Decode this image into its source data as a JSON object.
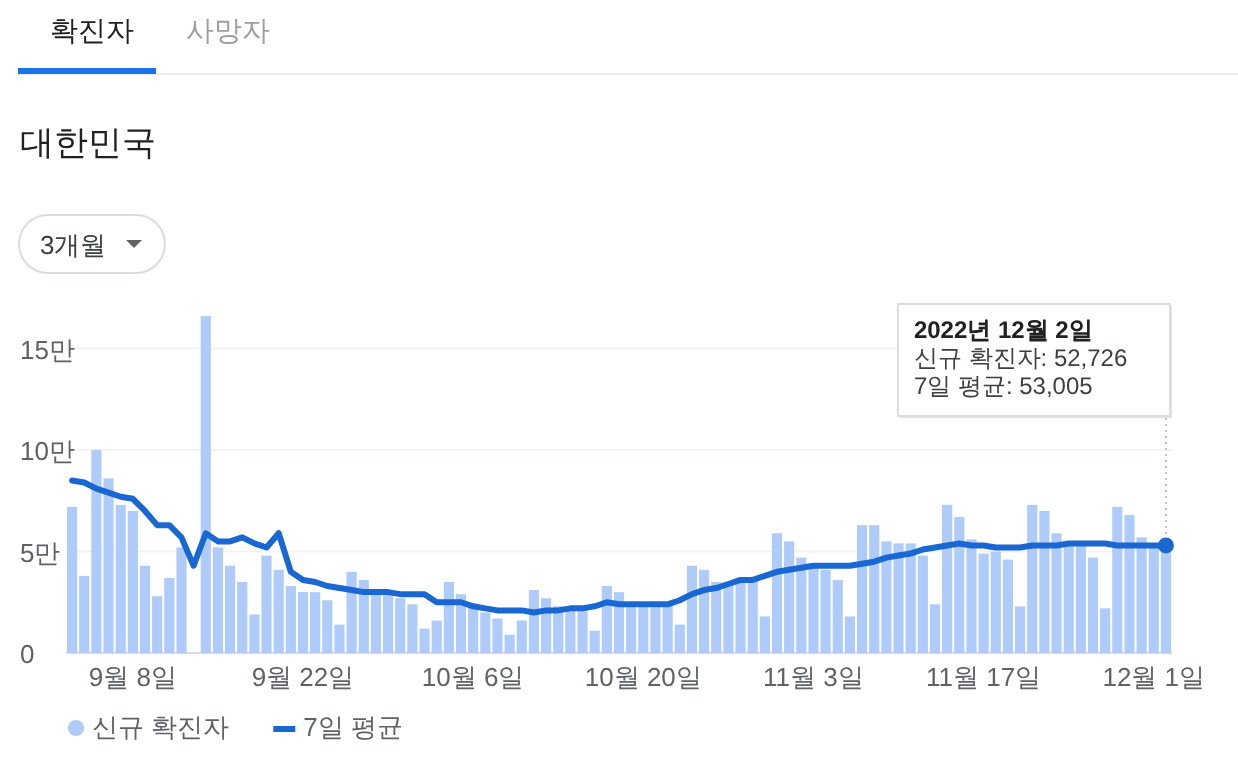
{
  "chart_data": {
    "type": "bar",
    "title": "대한민국",
    "annotations": [
      "확진자",
      "사망자",
      "3개월",
      "2022년 12월 2일\n신규 확진자: 52,726\n7일 평균: 53,005"
    ],
    "x": [
      "2022-09-03",
      "2022-09-04",
      "2022-09-05",
      "2022-09-06",
      "2022-09-07",
      "2022-09-08",
      "2022-09-09",
      "2022-09-10",
      "2022-09-11",
      "2022-09-12",
      "2022-09-13",
      "2022-09-14",
      "2022-09-15",
      "2022-09-16",
      "2022-09-17",
      "2022-09-18",
      "2022-09-19",
      "2022-09-20",
      "2022-09-21",
      "2022-09-22",
      "2022-09-23",
      "2022-09-24",
      "2022-09-25",
      "2022-09-26",
      "2022-09-27",
      "2022-09-28",
      "2022-09-29",
      "2022-09-30",
      "2022-10-01",
      "2022-10-02",
      "2022-10-03",
      "2022-10-04",
      "2022-10-05",
      "2022-10-06",
      "2022-10-07",
      "2022-10-08",
      "2022-10-09",
      "2022-10-10",
      "2022-10-11",
      "2022-10-12",
      "2022-10-13",
      "2022-10-14",
      "2022-10-15",
      "2022-10-16",
      "2022-10-17",
      "2022-10-18",
      "2022-10-19",
      "2022-10-20",
      "2022-10-21",
      "2022-10-22",
      "2022-10-23",
      "2022-10-24",
      "2022-10-25",
      "2022-10-26",
      "2022-10-27",
      "2022-10-28",
      "2022-10-29",
      "2022-10-30",
      "2022-10-31",
      "2022-11-01",
      "2022-11-02",
      "2022-11-03",
      "2022-11-04",
      "2022-11-05",
      "2022-11-06",
      "2022-11-07",
      "2022-11-08",
      "2022-11-09",
      "2022-11-10",
      "2022-11-11",
      "2022-11-12",
      "2022-11-13",
      "2022-11-14",
      "2022-11-15",
      "2022-11-16",
      "2022-11-17",
      "2022-11-18",
      "2022-11-19",
      "2022-11-20",
      "2022-11-21",
      "2022-11-22",
      "2022-11-23",
      "2022-11-24",
      "2022-11-25",
      "2022-11-26",
      "2022-11-27",
      "2022-11-28",
      "2022-11-29",
      "2022-11-30",
      "2022-12-01",
      "2022-12-02"
    ],
    "series": [
      {
        "name": "신규 확진자",
        "color": "#aecbfa",
        "values": [
          7.2,
          3.8,
          10.0,
          8.6,
          7.3,
          7.0,
          4.3,
          2.8,
          3.7,
          5.2,
          null,
          16.6,
          5.2,
          4.3,
          3.5,
          1.9,
          4.8,
          4.1,
          3.3,
          3.0,
          3.0,
          2.6,
          1.4,
          4.0,
          3.6,
          3.0,
          3.0,
          2.7,
          2.4,
          1.2,
          1.6,
          3.5,
          2.9,
          2.3,
          2.0,
          1.7,
          0.9,
          1.6,
          3.1,
          2.7,
          2.3,
          2.1,
          2.1,
          1.1,
          3.3,
          3.0,
          2.5,
          2.3,
          2.5,
          2.5,
          1.4,
          4.3,
          4.1,
          3.5,
          3.5,
          3.7,
          3.6,
          1.8,
          5.9,
          5.5,
          4.7,
          4.3,
          4.1,
          3.6,
          1.8,
          6.3,
          6.3,
          5.5,
          5.4,
          5.4,
          4.8,
          2.4,
          7.3,
          6.7,
          5.6,
          4.9,
          5.0,
          4.6,
          2.3,
          7.3,
          7.0,
          5.9,
          5.3,
          5.3,
          4.7,
          2.2,
          7.2,
          6.8,
          5.7,
          5.3,
          5.2726
        ]
      },
      {
        "name": "7일 평균",
        "type": "line",
        "color": "#1967d2",
        "values": [
          8.5,
          8.4,
          8.1,
          7.9,
          7.7,
          7.6,
          7.0,
          6.3,
          6.3,
          5.7,
          4.3,
          5.9,
          5.5,
          5.5,
          5.7,
          5.4,
          5.2,
          5.9,
          4.0,
          3.6,
          3.5,
          3.3,
          3.2,
          3.1,
          3.0,
          3.0,
          3.0,
          2.9,
          2.9,
          2.9,
          2.5,
          2.5,
          2.5,
          2.3,
          2.2,
          2.1,
          2.1,
          2.1,
          2.0,
          2.1,
          2.1,
          2.2,
          2.2,
          2.3,
          2.5,
          2.4,
          2.4,
          2.4,
          2.4,
          2.4,
          2.6,
          2.9,
          3.1,
          3.2,
          3.4,
          3.6,
          3.6,
          3.8,
          4.0,
          4.1,
          4.2,
          4.3,
          4.3,
          4.3,
          4.3,
          4.4,
          4.5,
          4.7,
          4.8,
          4.9,
          5.1,
          5.2,
          5.3,
          5.4,
          5.3,
          5.3,
          5.2,
          5.2,
          5.2,
          5.3,
          5.3,
          5.3,
          5.4,
          5.4,
          5.4,
          5.4,
          5.3,
          5.3,
          5.3,
          5.3,
          5.3005
        ]
      }
    ],
    "xlim": [
      "2022-09-02T12:00",
      "2022-12-02T12:00"
    ],
    "xticks": [
      {
        "value": "2022-09-08",
        "label": "9월 8일"
      },
      {
        "value": "2022-09-22",
        "label": "9월 22일"
      },
      {
        "value": "2022-10-06",
        "label": "10월 6일"
      },
      {
        "value": "2022-10-20",
        "label": "10월 20일"
      },
      {
        "value": "2022-11-03",
        "label": "11월 3일"
      },
      {
        "value": "2022-11-17",
        "label": "11월 17일"
      },
      {
        "value": "2022-12-01",
        "label": "12월 1일"
      }
    ],
    "ylim": [
      0,
      17
    ],
    "yticks": [
      0,
      {
        "value": 5,
        "label": "5만"
      },
      {
        "value": 10,
        "label": "10만"
      },
      {
        "value": 15,
        "label": "15만"
      }
    ],
    "ref_lines": [
      {
        "axis": "x",
        "value": "2022-12-02",
        "color": "#bdc1c6",
        "line_style": "dotted"
      }
    ],
    "grid": "y",
    "legend": "bottom"
  }
}
